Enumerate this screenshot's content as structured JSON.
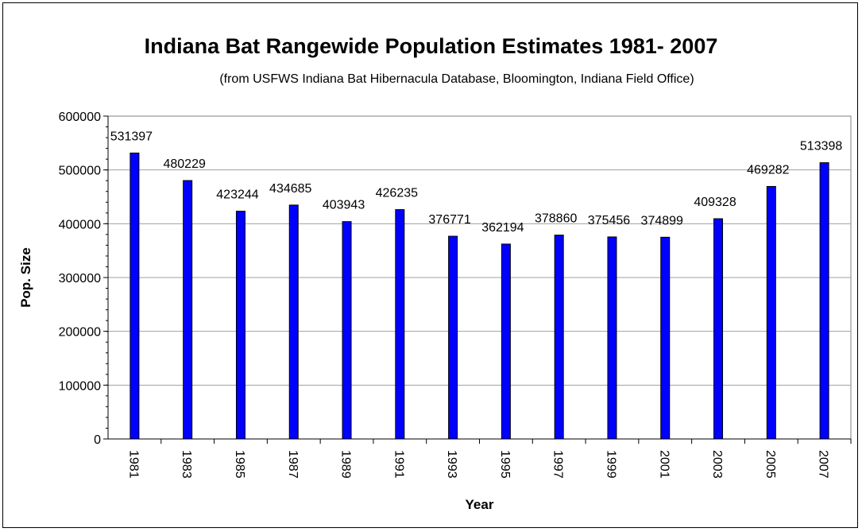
{
  "chart_data": {
    "type": "bar",
    "title": "Indiana Bat Rangewide Population Estimates 1981- 2007",
    "subtitle": "(from USFWS Indiana Bat Hibernacula Database, Bloomington, Indiana Field Office)",
    "xlabel": "Year",
    "ylabel": "Pop. Size",
    "categories": [
      "1981",
      "1983",
      "1985",
      "1987",
      "1989",
      "1991",
      "1993",
      "1995",
      "1997",
      "1999",
      "2001",
      "2003",
      "2005",
      "2007"
    ],
    "values": [
      531397,
      480229,
      423244,
      434685,
      403943,
      426235,
      376771,
      362194,
      378860,
      375456,
      374899,
      409328,
      469282,
      513398
    ],
    "data_labels": [
      "531397",
      "480229",
      "423244",
      "434685",
      "403943",
      "426235",
      "376771",
      "362194",
      "378860",
      "375456",
      "374899",
      "409328",
      "469282",
      "513398"
    ],
    "ylim": [
      0,
      600000
    ],
    "yticks": [
      "0",
      "100000",
      "200000",
      "300000",
      "400000",
      "500000",
      "600000"
    ],
    "grid": "horizontal",
    "legend": "none",
    "bar_color": "#0000ff"
  }
}
